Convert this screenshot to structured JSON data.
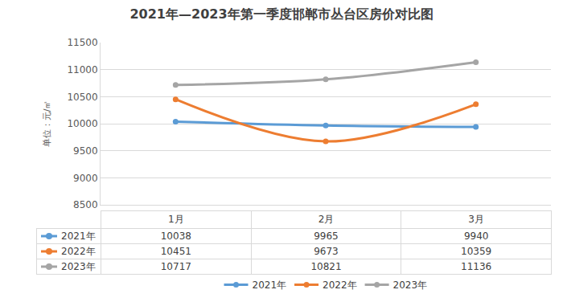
{
  "chart_data": {
    "type": "line",
    "title": "2021年—2023年第一季度邯郸市丛台区房价对比图",
    "ylabel": "单位：元/㎡",
    "categories": [
      "1月",
      "2月",
      "3月"
    ],
    "series": [
      {
        "name": "2021年",
        "color": "#5b9bd5",
        "values": [
          10038,
          9965,
          9940
        ]
      },
      {
        "name": "2022年",
        "color": "#ed7d31",
        "values": [
          10451,
          9673,
          10359
        ]
      },
      {
        "name": "2023年",
        "color": "#a5a5a5",
        "values": [
          10717,
          10821,
          11136
        ]
      }
    ],
    "ylim": [
      8500,
      11500
    ],
    "yticks": [
      8500,
      9000,
      9500,
      10000,
      10500,
      11000,
      11500
    ],
    "grid": true,
    "legend": "bottom",
    "marker": "circle",
    "line_style": "smooth",
    "data_labels": true
  }
}
